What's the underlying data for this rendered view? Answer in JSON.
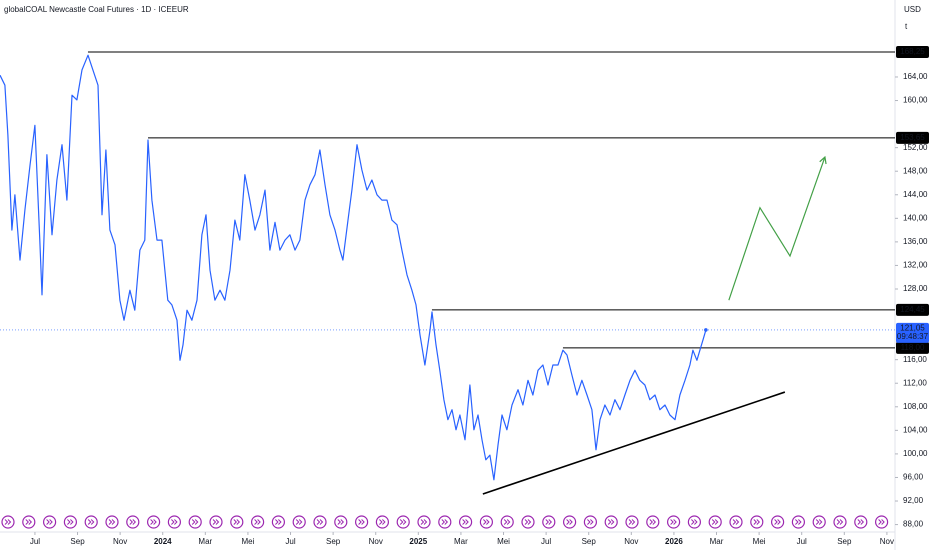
{
  "chart_data": {
    "type": "line",
    "title": "globalCOAL Newcastle Coal Futures · 1D · ICEEUR",
    "currency": "USD",
    "unit": "t",
    "series": [
      {
        "name": "globalCOAL Newcastle Coal Futures",
        "color": "#2962ff",
        "x": [
          -1.64,
          -1.41,
          -1.27,
          -1.08,
          -0.94,
          -0.7,
          -0.47,
          -0.23,
          0,
          0.23,
          0.33,
          0.56,
          0.8,
          1.03,
          1.27,
          1.5,
          1.74,
          1.97,
          2.21,
          2.49,
          2.72,
          2.96,
          3.15,
          3.33,
          3.52,
          3.76,
          3.99,
          4.18,
          4.46,
          4.69,
          4.93,
          5.16,
          5.31,
          5.49,
          5.73,
          5.96,
          6.24,
          6.43,
          6.67,
          6.81,
          6.95,
          7.14,
          7.37,
          7.61,
          7.84,
          8.03,
          8.22,
          8.45,
          8.69,
          8.92,
          9.16,
          9.39,
          9.62,
          9.86,
          10.09,
          10.33,
          10.56,
          10.8,
          11.03,
          11.27,
          11.5,
          11.74,
          11.97,
          12.21,
          12.44,
          12.68,
          12.91,
          13.15,
          13.38,
          13.62,
          13.85,
          14.09,
          14.32,
          14.46,
          14.7,
          14.88,
          15.12,
          15.35,
          15.59,
          15.82,
          16.06,
          16.29,
          16.53,
          16.76,
          17.0,
          17.23,
          17.47,
          17.7,
          17.89,
          18.08,
          18.31,
          18.55,
          18.64,
          18.83,
          19.01,
          19.2,
          19.39,
          19.58,
          19.77,
          19.95,
          20.19,
          20.42,
          20.61,
          20.8,
          20.99,
          21.17,
          21.36,
          21.55,
          21.74,
          21.93,
          22.16,
          22.4,
          22.68,
          22.91,
          23.15,
          23.38,
          23.62,
          23.85,
          24.09,
          24.32,
          24.56,
          24.79,
          24.98,
          25.21,
          25.45,
          25.68,
          25.92,
          26.15,
          26.34,
          26.53,
          26.76,
          27.0,
          27.23,
          27.47,
          27.7,
          27.94,
          28.17,
          28.4,
          28.64,
          28.87,
          29.11,
          29.34,
          29.58,
          29.81,
          30.05,
          30.28,
          30.52,
          30.75,
          30.89,
          31.08,
          31.22,
          31.36,
          31.5
        ],
        "values": [
          164.3,
          162.6,
          154.1,
          138,
          144,
          132.9,
          141.4,
          149,
          155.8,
          136.3,
          127,
          150.8,
          137.2,
          146.5,
          152.5,
          143.1,
          160.9,
          160.1,
          165.2,
          167.7,
          165.2,
          162.6,
          140.6,
          151.6,
          138,
          135.5,
          126.1,
          122.7,
          127.8,
          124.4,
          134.6,
          136.3,
          153.3,
          143.1,
          136.3,
          136.3,
          126.1,
          125.3,
          122.7,
          115.9,
          118.5,
          124.4,
          122.7,
          126.1,
          137.2,
          140.6,
          131.2,
          126.1,
          127.8,
          126.1,
          131.2,
          139.7,
          136.3,
          147.4,
          143.1,
          138,
          140.6,
          144.8,
          134.6,
          139.3,
          134.6,
          136.3,
          137.2,
          134.6,
          136.3,
          143.1,
          145.7,
          147.4,
          151.6,
          145.7,
          140.6,
          138,
          134.6,
          132.9,
          139.7,
          144.8,
          152.5,
          148.2,
          144.8,
          146.5,
          144,
          143.1,
          143.1,
          139.7,
          138.9,
          134.6,
          130.4,
          127.8,
          125.3,
          120.2,
          115.1,
          121,
          124.1,
          118.5,
          114.2,
          109.2,
          105.8,
          107.5,
          104.1,
          106.6,
          102.4,
          111.7,
          104.1,
          106.6,
          102.4,
          99,
          99.8,
          95.6,
          101.5,
          106.6,
          104.1,
          108.3,
          110.9,
          108.3,
          112.5,
          110,
          114.2,
          115.1,
          111.7,
          115.1,
          115.1,
          117.6,
          116.8,
          113.4,
          110,
          112.5,
          110,
          107.5,
          100.7,
          105.8,
          108.3,
          106.6,
          109.2,
          107.5,
          110,
          112.5,
          114.2,
          112.5,
          111.7,
          109.2,
          110,
          107.5,
          108.3,
          106.6,
          105.8,
          110,
          112.5,
          115.1,
          117.6,
          115.9,
          117.6,
          119.3,
          121.05
        ]
      }
    ],
    "last_price": {
      "value": 121.05,
      "label": "121,05"
    },
    "countdown": "09:48:37",
    "levels": [
      {
        "value": 168.25,
        "label": "168,25",
        "start": 2.49
      },
      {
        "value": 153.65,
        "label": "153,65",
        "start": 5.31
      },
      {
        "value": 124.45,
        "label": "124,45",
        "start": 18.64
      },
      {
        "value": 118,
        "label": "118,00",
        "start": 24.79
      }
    ],
    "trendline": {
      "color": "#000000",
      "x": [
        21.03,
        35.21
      ],
      "values": [
        93.2,
        110.5
      ]
    },
    "projection": {
      "color": "#43a047",
      "x": [
        32.58,
        34.04,
        35.45,
        37.09
      ],
      "values": [
        126.1,
        141.8,
        133.6,
        150.4
      ]
    },
    "xlim": [
      -1.64,
      40.38
    ],
    "ylim": [
      86.74,
      177.07
    ],
    "xticks": [
      {
        "value": 0,
        "label": "Jul"
      },
      {
        "value": 2,
        "label": "Sep"
      },
      {
        "value": 4,
        "label": "Nov"
      },
      {
        "value": 6,
        "label": "2024"
      },
      {
        "value": 8,
        "label": "Mar"
      },
      {
        "value": 10,
        "label": "Mei"
      },
      {
        "value": 12,
        "label": "Jul"
      },
      {
        "value": 14,
        "label": "Sep"
      },
      {
        "value": 16,
        "label": "Nov"
      },
      {
        "value": 18,
        "label": "2025"
      },
      {
        "value": 20,
        "label": "Mar"
      },
      {
        "value": 22,
        "label": "Mei"
      },
      {
        "value": 24,
        "label": "Jul"
      },
      {
        "value": 26,
        "label": "Sep"
      },
      {
        "value": 28,
        "label": "Nov"
      },
      {
        "value": 30,
        "label": "2026"
      },
      {
        "value": 32,
        "label": "Mar"
      },
      {
        "value": 34,
        "label": "Mei"
      },
      {
        "value": 36,
        "label": "Jul"
      },
      {
        "value": 38,
        "label": "Sep"
      },
      {
        "value": 40,
        "label": "Nov"
      }
    ],
    "yticks": [
      {
        "value": 164,
        "label": "164,00"
      },
      {
        "value": 160,
        "label": "160,00"
      },
      {
        "value": 152,
        "label": "152,00"
      },
      {
        "value": 148,
        "label": "148,00"
      },
      {
        "value": 144,
        "label": "144,00"
      },
      {
        "value": 140,
        "label": "140,00"
      },
      {
        "value": 136,
        "label": "136,00"
      },
      {
        "value": 132,
        "label": "132,00"
      },
      {
        "value": 128,
        "label": "128,00"
      },
      {
        "value": 116,
        "label": "116,00"
      },
      {
        "value": 112,
        "label": "112,00"
      },
      {
        "value": 108,
        "label": "108,00"
      },
      {
        "value": 104,
        "label": "104,00"
      },
      {
        "value": 100,
        "label": "100,00"
      },
      {
        "value": 96,
        "label": "96,00"
      },
      {
        "value": 92,
        "label": "92,00"
      },
      {
        "value": 88,
        "label": "88,00"
      }
    ]
  }
}
